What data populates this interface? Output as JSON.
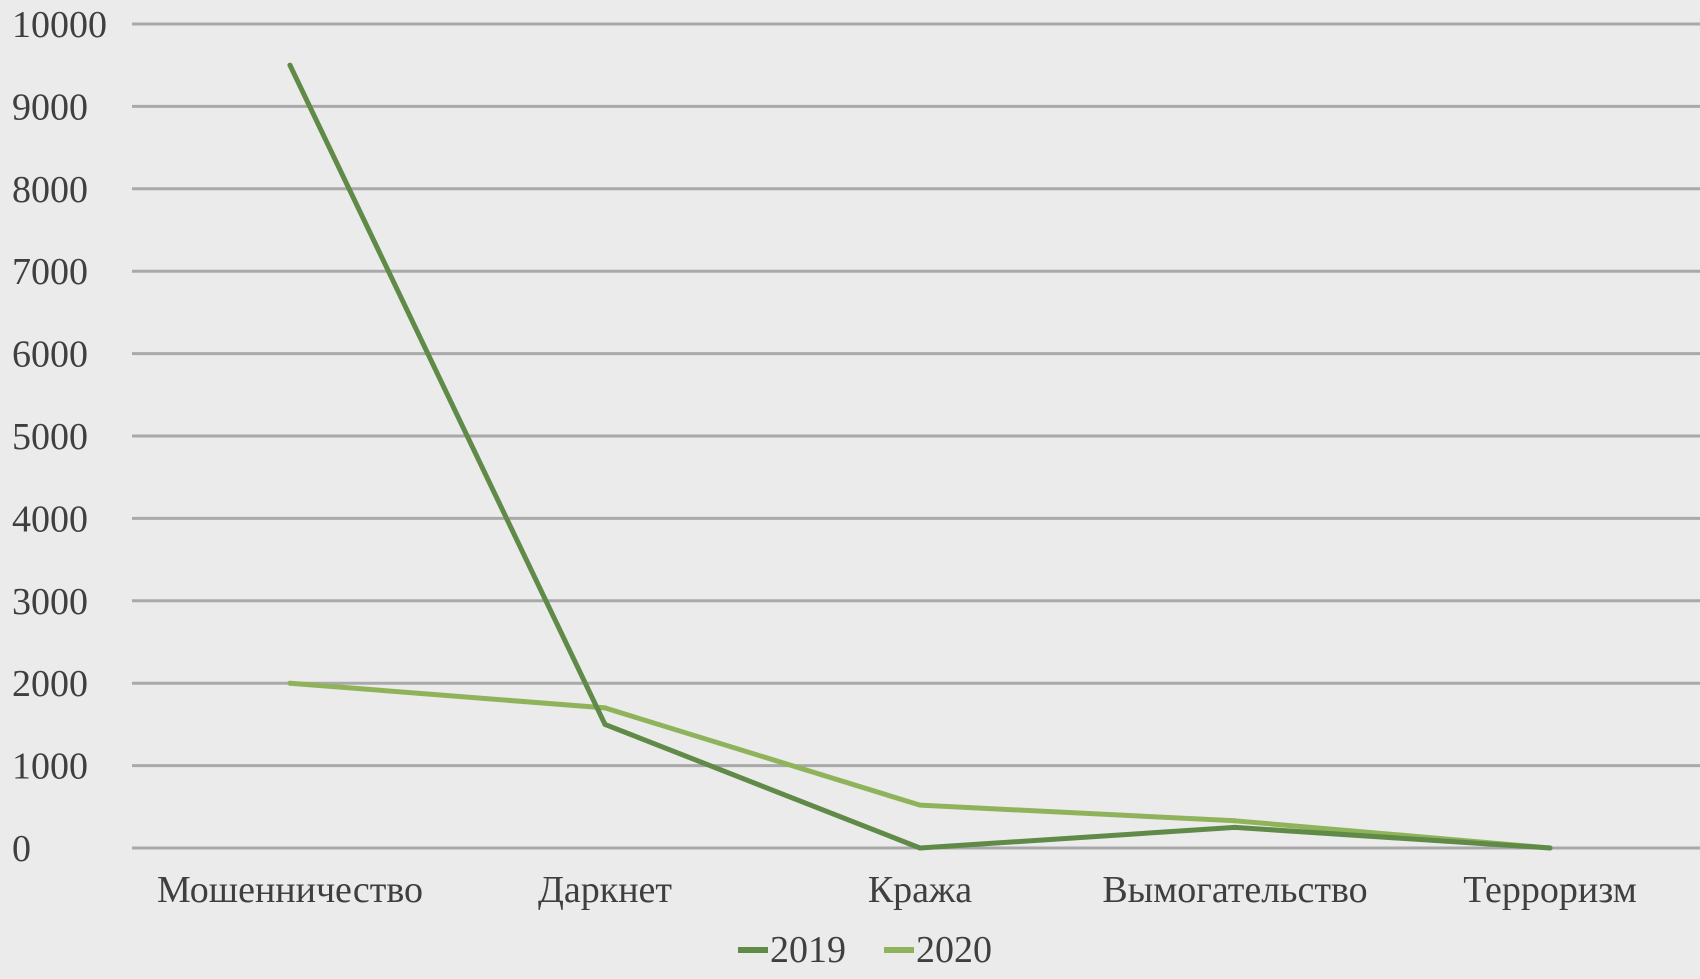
{
  "chart_data": {
    "type": "line",
    "title": "",
    "xlabel": "",
    "ylabel": "",
    "categories": [
      "Мошенничество",
      "Даркнет",
      "Кража",
      "Вымогательство",
      "Терроризм"
    ],
    "ylim": [
      0,
      10000
    ],
    "yticks": [
      "0",
      "1000",
      "2000",
      "3000",
      "4000",
      "5000",
      "6000",
      "7000",
      "8000",
      "9000",
      "10000"
    ],
    "grid": true,
    "legend_position": "bottom",
    "series": [
      {
        "name": "2019",
        "color": "#5f8a47",
        "values": [
          9500,
          1500,
          0,
          250,
          0
        ]
      },
      {
        "name": "2020",
        "color": "#8fb35a",
        "values": [
          2000,
          1700,
          520,
          330,
          0
        ]
      }
    ]
  }
}
